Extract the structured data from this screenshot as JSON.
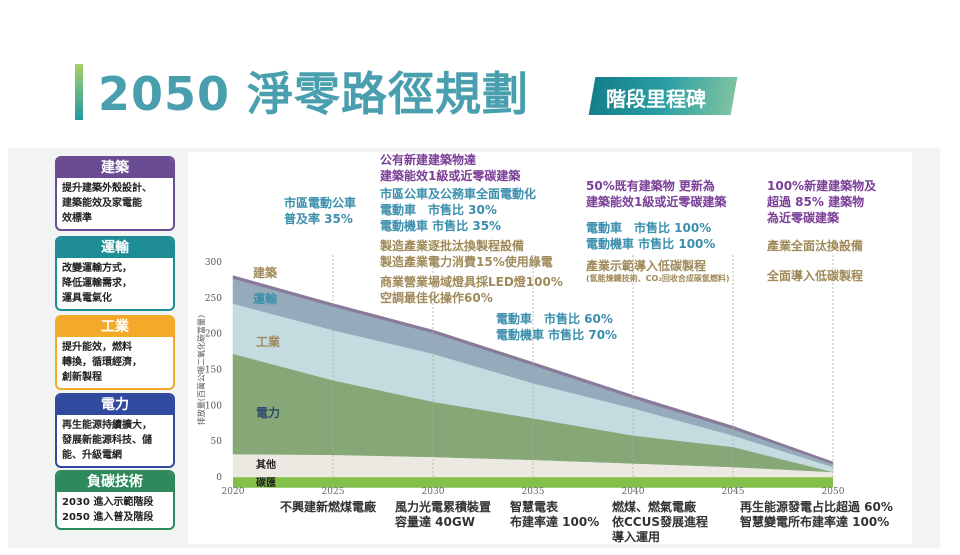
{
  "header": {
    "title": "2050 淨零路徑規劃",
    "badge": "階段里程碑"
  },
  "sectors": [
    {
      "title": "建築",
      "desc": "提升建築外殼設計、\n建築能效及家電能\n效標準",
      "color": "#6a4c93"
    },
    {
      "title": "運輸",
      "desc": "改變運輸方式，\n降低運輸需求，\n運具電氣化",
      "color": "#1e8c95"
    },
    {
      "title": "工業",
      "desc": "提升能效，燃料\n轉換，循環經濟，\n創新製程",
      "color": "#f4a928"
    },
    {
      "title": "電力",
      "desc": "再生能源持續擴大，\n發展新能源科技、儲\n能、升級電網",
      "color": "#2f4a9e"
    },
    {
      "title": "負碳技術",
      "desc": "2030 進入示範階段\n2050 進入普及階段",
      "color": "#2e8a5d"
    }
  ],
  "chart_data": {
    "type": "area",
    "stacked": true,
    "x": [
      2020,
      2025,
      2030,
      2035,
      2040,
      2045,
      2050
    ],
    "ylabel": "排放量(百萬公噸二氧化碳當量)",
    "ylim": [
      0,
      300
    ],
    "yticks": [
      0,
      50,
      100,
      150,
      200,
      250,
      300
    ],
    "xticks": [
      2020,
      2025,
      2030,
      2035,
      2040,
      2045,
      2050
    ],
    "series": [
      {
        "name": "碳匯",
        "values": [
          -15,
          -15,
          -15,
          -15,
          -15,
          -15,
          -15
        ],
        "color": "#82c04a"
      },
      {
        "name": "其他",
        "values": [
          32,
          31,
          28,
          24,
          19,
          14,
          7
        ],
        "color": "#ece9e2"
      },
      {
        "name": "電力",
        "values": [
          140,
          104,
          77,
          58,
          39,
          28,
          0
        ],
        "color": "#86a877"
      },
      {
        "name": "工業",
        "values": [
          70,
          70,
          67,
          49,
          38,
          16,
          7
        ],
        "color": "#c4dce0"
      },
      {
        "name": "運輸",
        "values": [
          35,
          33,
          29,
          25,
          14,
          9,
          4
        ],
        "color": "#95aabb"
      },
      {
        "name": "建築",
        "values": [
          4,
          4,
          4,
          4,
          4,
          4,
          3
        ],
        "color": "#8a7a99"
      }
    ]
  },
  "annotations": {
    "a2025": [
      "市區電動公車",
      "普及率 35%"
    ],
    "a2030_building": [
      "公有新建建築物達",
      "建築能效1級或近零碳建築"
    ],
    "a2030_transport": [
      "市區公車及公務車全面電動化",
      "電動車　市售比 30%",
      "電動機車 市售比 35%"
    ],
    "a2030_industry": [
      "製造產業逐批汰換製程設備",
      "製造產業電力消費15%使用綠電"
    ],
    "a2030_commercial": [
      "商業營業場域燈具採LED燈100%",
      "空調最佳化操作60%"
    ],
    "a2035": [
      "電動車　市售比 60%",
      "電動機車 市售比 70%"
    ],
    "a2040_building": [
      "50%既有建築物 更新為",
      "建築能效1級或近零碳建築"
    ],
    "a2040_transport": [
      "電動車　市售比 100%",
      "電動機車 市售比 100%"
    ],
    "a2040_industry": [
      "產業示範導入低碳製程",
      "(氫能煉鐵技術、CO₂回收合成碳氫燃料)"
    ],
    "a2050_building": [
      "100%新建建築物及",
      "超過 85% 建築物",
      "為近零碳建築"
    ],
    "a2050_industry1": "產業全面汰換設備",
    "a2050_industry2": "全面導入低碳製程"
  },
  "power_milestones": [
    [
      "不興建新燃煤電廠"
    ],
    [
      "風力光電累積裝置",
      "容量達 40GW"
    ],
    [
      "智慧電表",
      "布建率達 100%"
    ],
    [
      "燃煤、燃氣電廠",
      "依CCUS發展進程",
      "導入運用"
    ],
    [
      "再生能源發電占比超過 60%",
      "智慧變電所布建率達 100%"
    ]
  ]
}
